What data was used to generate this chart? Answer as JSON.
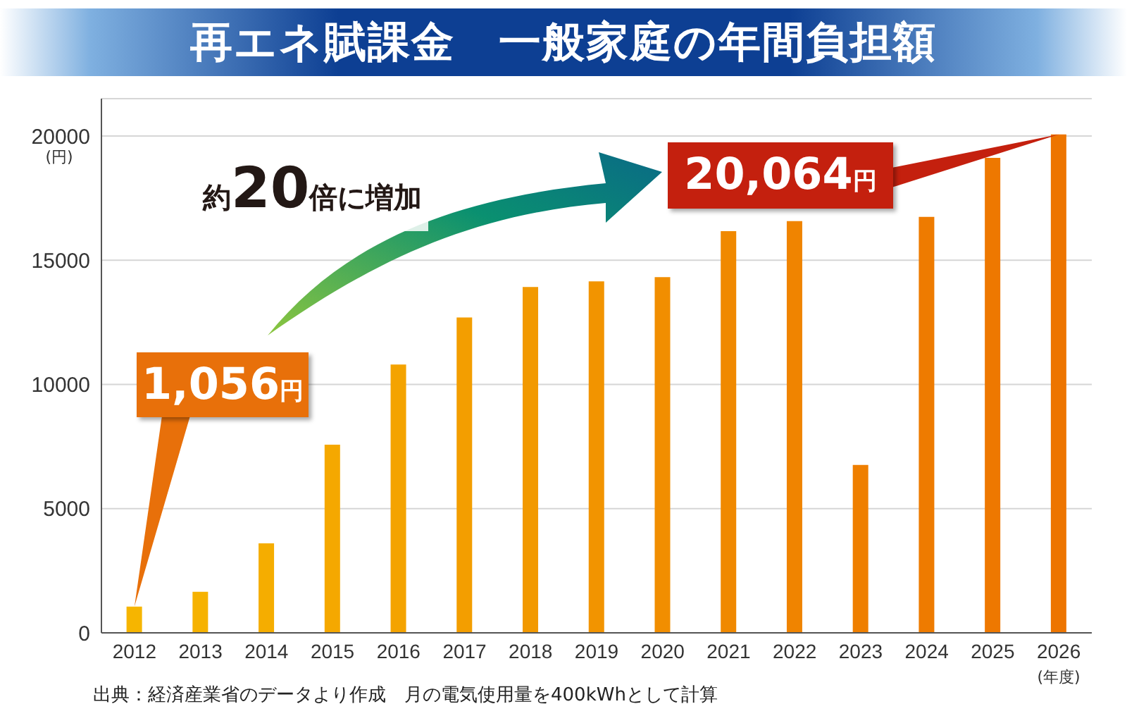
{
  "chart_data": {
    "type": "bar",
    "title": "再エネ賦課金　一般家庭の年間負担額",
    "ylabel": "(円)",
    "xlabel": "(年度)",
    "categories": [
      "2012",
      "2013",
      "2014",
      "2015",
      "2016",
      "2017",
      "2018",
      "2019",
      "2020",
      "2021",
      "2022",
      "2023",
      "2024",
      "2025",
      "2026"
    ],
    "values": [
      1056,
      1650,
      3600,
      7570,
      10800,
      12690,
      13920,
      14150,
      14320,
      16170,
      16570,
      6760,
      16740,
      19120,
      20064
    ],
    "colors": [
      "#f6b500",
      "#f6b200",
      "#f5ad00",
      "#f5a800",
      "#f4a300",
      "#f39e00",
      "#f29900",
      "#f29400",
      "#f18e00",
      "#f08900",
      "#f08400",
      "#ef7f00",
      "#ee7b00",
      "#ee7800",
      "#ed7500"
    ],
    "ylim": [
      0,
      21500
    ],
    "yticks": [
      0,
      5000,
      10000,
      15000,
      20000
    ],
    "grid": "y",
    "annotations": [
      {
        "text": "1,056円",
        "x": "2012",
        "y": 1056
      },
      {
        "text": "20,064円",
        "x": "2026",
        "y": 20064
      },
      "約20倍に増加",
      "出典：経済産業省のデータより作成　月の電気使用量を400kWhとして計算"
    ]
  }
}
